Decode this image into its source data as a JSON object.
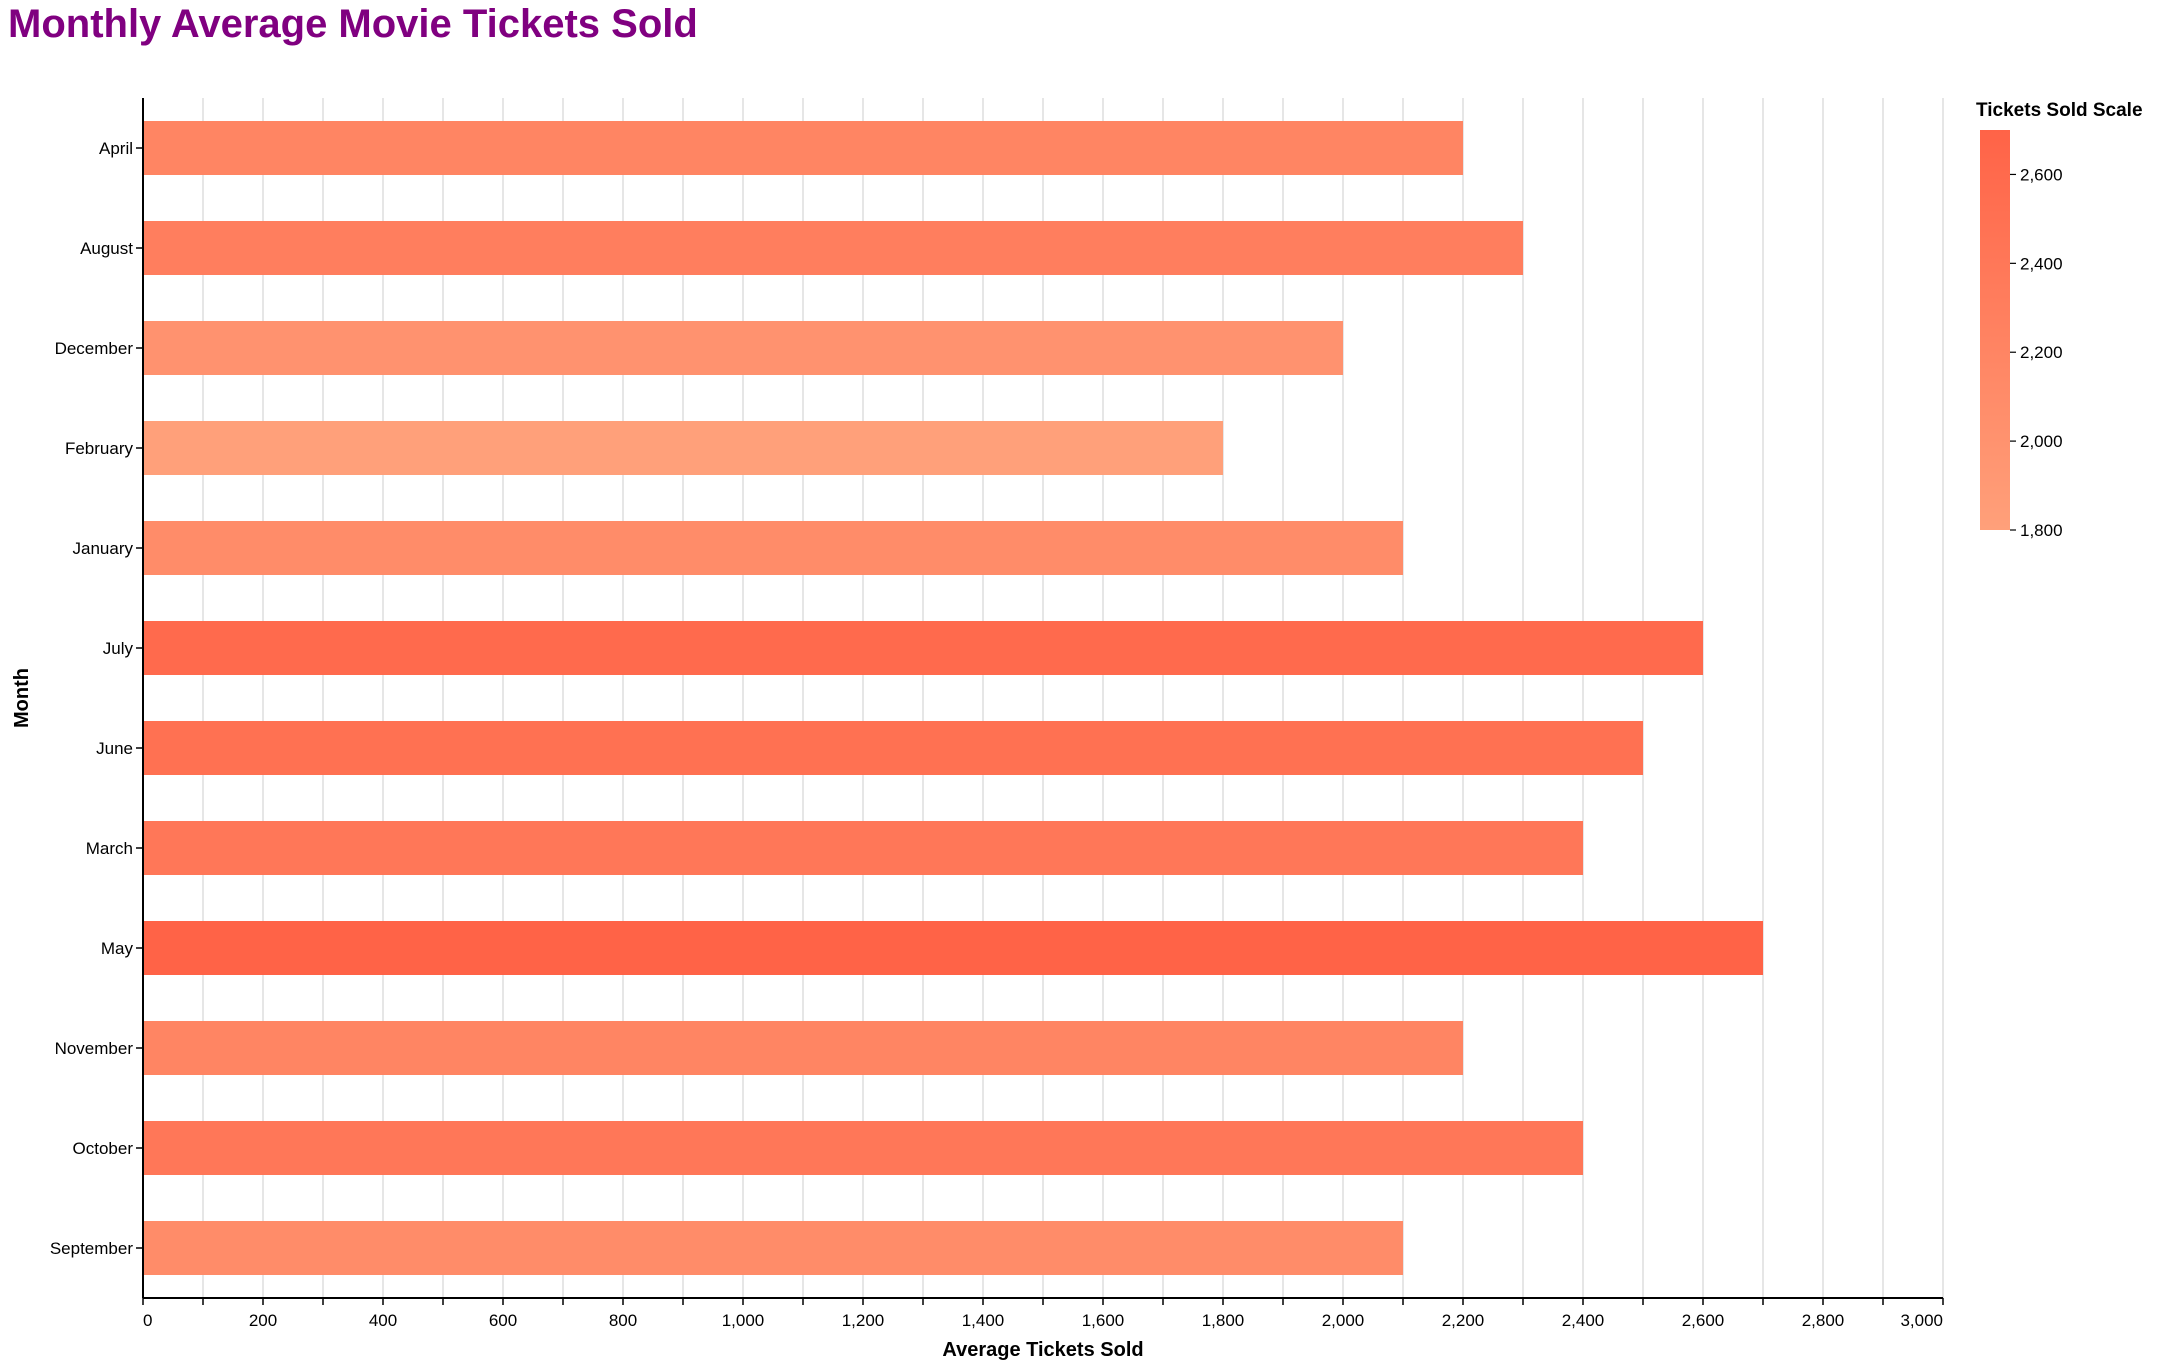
{
  "chart_data": {
    "type": "bar",
    "orientation": "horizontal",
    "title": "Monthly Average Movie Tickets Sold",
    "xlabel": "Average Tickets Sold",
    "ylabel": "Month",
    "xlim": [
      0,
      3000
    ],
    "xticks": [
      "0",
      "200",
      "400",
      "600",
      "800",
      "1,000",
      "1,200",
      "1,400",
      "1,600",
      "1,800",
      "2,000",
      "2,200",
      "2,400",
      "2,600",
      "2,800",
      "3,000"
    ],
    "grid": true,
    "categories": [
      "April",
      "August",
      "December",
      "February",
      "January",
      "July",
      "June",
      "March",
      "May",
      "November",
      "October",
      "September"
    ],
    "values": [
      2200,
      2300,
      2000,
      1800,
      2100,
      2600,
      2500,
      2400,
      2700,
      2200,
      2400,
      2100
    ],
    "color_legend": {
      "title": "Tickets Sold Scale",
      "placement": "top-right",
      "domain": [
        1800,
        2700
      ],
      "ticks": [
        "1,800",
        "2,000",
        "2,200",
        "2,400",
        "2,600"
      ],
      "color_low": "#FFA07A",
      "color_high": "#FF6347"
    }
  }
}
